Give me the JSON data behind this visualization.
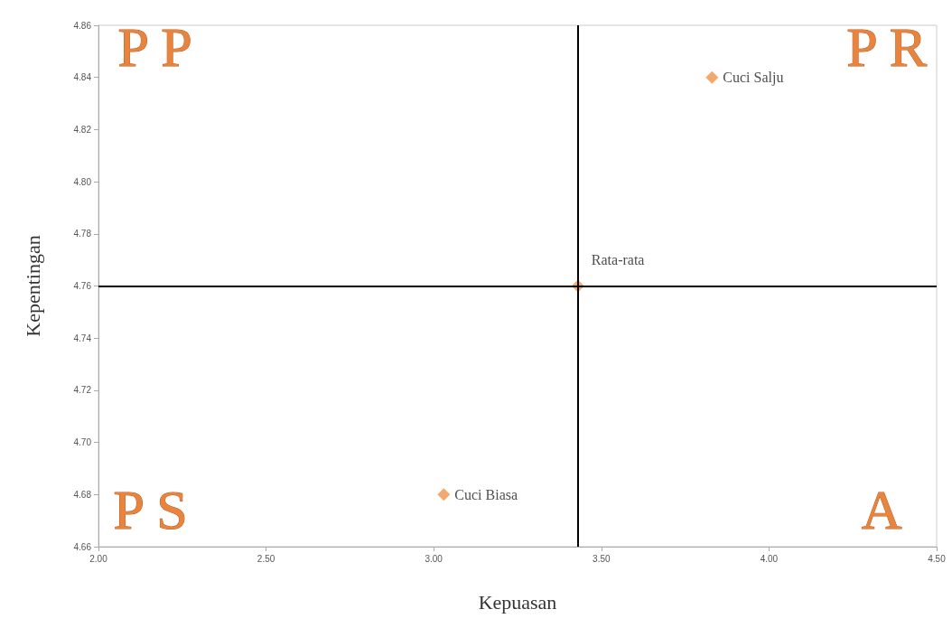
{
  "chart_data": {
    "type": "scatter",
    "xlabel": "Kepuasan",
    "ylabel": "Kepentingan",
    "series": [
      {
        "name": "Cuci Salju",
        "color": "#f0944a",
        "x": [
          3.83
        ],
        "values": [
          4.84
        ]
      },
      {
        "name": "Rata-rata",
        "color": "#f0944a",
        "x": [
          3.43
        ],
        "values": [
          4.76
        ]
      },
      {
        "name": "Cuci Biasa",
        "color": "#f0944a",
        "x": [
          3.03
        ],
        "values": [
          4.68
        ]
      }
    ],
    "xlim": [
      2.0,
      4.5
    ],
    "xticks": [
      {
        "value": 2.0,
        "label": "2.00"
      },
      {
        "value": 2.5,
        "label": "2.50"
      },
      {
        "value": 3.0,
        "label": "3.00"
      },
      {
        "value": 3.5,
        "label": "3.50"
      },
      {
        "value": 4.0,
        "label": "4.00"
      },
      {
        "value": 4.5,
        "label": "4.50"
      }
    ],
    "ylim": [
      4.66,
      4.86
    ],
    "yticks": [
      {
        "value": 4.66,
        "label": "4.66"
      },
      {
        "value": 4.68,
        "label": "4.68"
      },
      {
        "value": 4.7,
        "label": "4.70"
      },
      {
        "value": 4.72,
        "label": "4.72"
      },
      {
        "value": 4.74,
        "label": "4.74"
      },
      {
        "value": 4.76,
        "label": "4.76"
      },
      {
        "value": 4.78,
        "label": "4.78"
      },
      {
        "value": 4.8,
        "label": "4.80"
      },
      {
        "value": 4.82,
        "label": "4.82"
      },
      {
        "value": 4.84,
        "label": "4.84"
      },
      {
        "value": 4.86,
        "label": "4.86"
      }
    ],
    "ref_lines": [
      {
        "axis": "x",
        "value": 3.43,
        "color": "#000000"
      },
      {
        "axis": "y",
        "value": 4.76,
        "color": "#000000"
      }
    ],
    "annotations": [
      "P P",
      "P R",
      "P S",
      "A"
    ],
    "marker": "diamond",
    "grid": false,
    "legend": false
  }
}
